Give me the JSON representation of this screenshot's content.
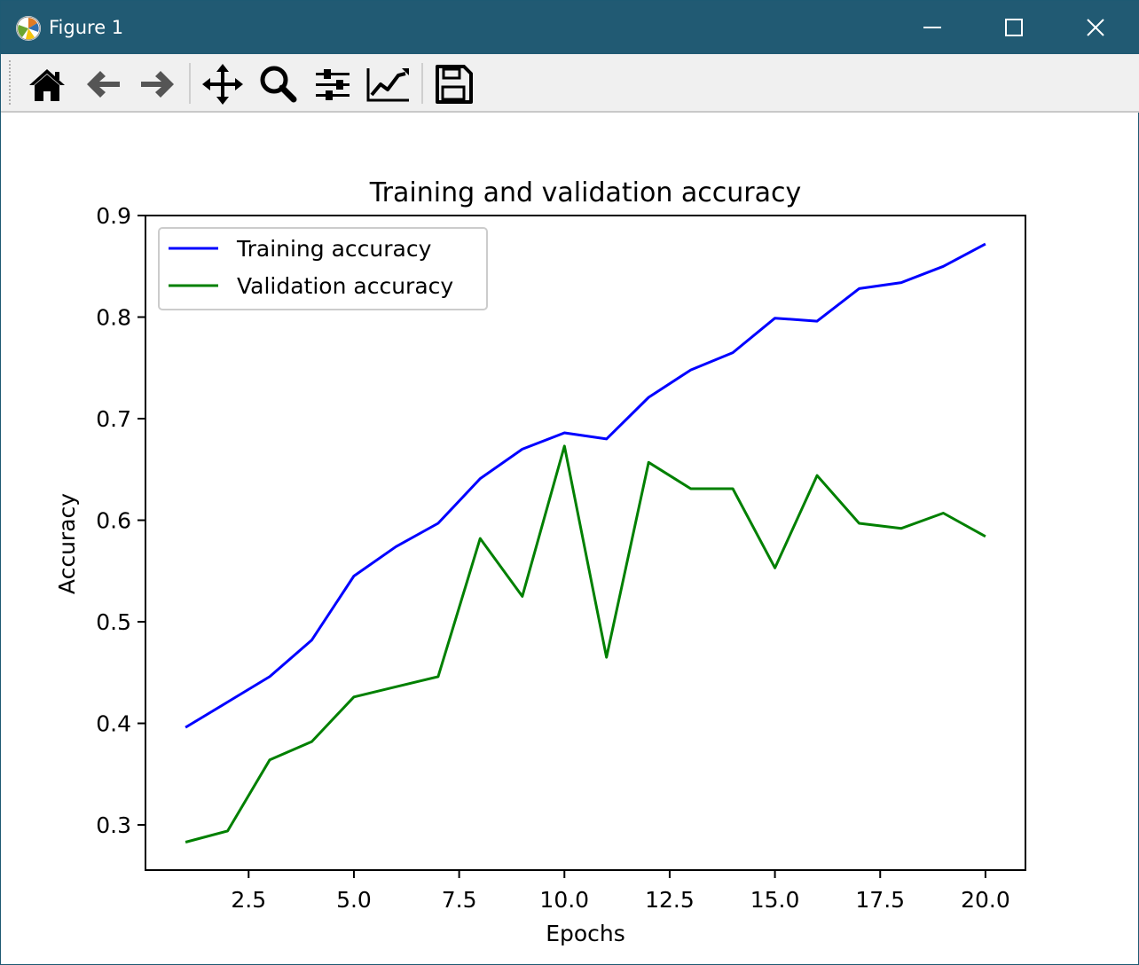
{
  "window": {
    "title": "Figure 1",
    "icon": "matplotlib-logo-icon",
    "controls": [
      "minimize-icon",
      "maximize-icon",
      "close-icon"
    ]
  },
  "toolbar": {
    "buttons": [
      "home-icon",
      "back-arrow-icon",
      "forward-arrow-icon",
      "pan-icon",
      "zoom-icon",
      "configure-subplots-icon",
      "edit-axis-icon",
      "save-icon"
    ]
  },
  "colors": {
    "titlebar": "#215a73",
    "training": "#0000ff",
    "validation": "#008000"
  },
  "chart_data": {
    "type": "line",
    "title": "Training and validation accuracy",
    "xlabel": "Epochs",
    "ylabel": "Accuracy",
    "xlim": [
      0.05,
      20.95
    ],
    "ylim": [
      0.2555,
      0.9
    ],
    "xticks": [
      2.5,
      5.0,
      7.5,
      10.0,
      12.5,
      15.0,
      17.5,
      20.0
    ],
    "xtick_labels": [
      "2.5",
      "5.0",
      "7.5",
      "10.0",
      "12.5",
      "15.0",
      "17.5",
      "20.0"
    ],
    "yticks": [
      0.3,
      0.4,
      0.5,
      0.6,
      0.7,
      0.8,
      0.9
    ],
    "ytick_labels": [
      "0.3",
      "0.4",
      "0.5",
      "0.6",
      "0.7",
      "0.8",
      "0.9"
    ],
    "legend_position": "upper left",
    "grid": false,
    "x": [
      1,
      2,
      3,
      4,
      5,
      6,
      7,
      8,
      9,
      10,
      11,
      12,
      13,
      14,
      15,
      16,
      17,
      18,
      19,
      20
    ],
    "series": [
      {
        "name": "Training accuracy",
        "color": "#0000ff",
        "values": [
          0.396,
          0.421,
          0.446,
          0.482,
          0.545,
          0.574,
          0.597,
          0.641,
          0.67,
          0.686,
          0.68,
          0.721,
          0.748,
          0.765,
          0.799,
          0.796,
          0.828,
          0.834,
          0.85,
          0.872
        ]
      },
      {
        "name": "Validation accuracy",
        "color": "#008000",
        "values": [
          0.283,
          0.294,
          0.364,
          0.382,
          0.426,
          0.436,
          0.446,
          0.582,
          0.525,
          0.673,
          0.465,
          0.657,
          0.631,
          0.631,
          0.553,
          0.644,
          0.597,
          0.592,
          0.607,
          0.584
        ]
      }
    ]
  }
}
